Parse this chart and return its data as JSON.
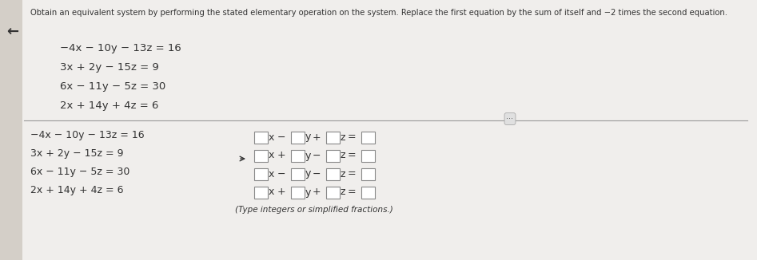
{
  "white_bg": "#f0eeec",
  "panel_bg": "#f0eeec",
  "title": "Obtain an equivalent system by performing the stated elementary operation on the system. Replace the first equation by the sum of itself and −2 times the second equation.",
  "top_eqs": [
    "-4x  -  10y  -  13z  =  16",
    "3x  +  2y  -  15z  =  9",
    "6x  -  11y  -  5z  =  30",
    "2x  +  14y  +  4z  =  6"
  ],
  "bottom_left_eqs": [
    "-4x  -  10y  -  13z  =  16",
    "3x  +  2y  -  15z  =  9",
    "6x  -  11y  -  5z  =  30",
    "2x  +  14y  +  4z  =  6"
  ],
  "right_rows": [
    [
      "−",
      "+"
    ],
    [
      "+",
      "−"
    ],
    [
      "−",
      "−"
    ],
    [
      "+",
      "+"
    ]
  ],
  "footnote": "(Type integers or simplified fractions.)",
  "text_color": "#333333",
  "box_edge": "#888888",
  "divider_color": "#999999"
}
